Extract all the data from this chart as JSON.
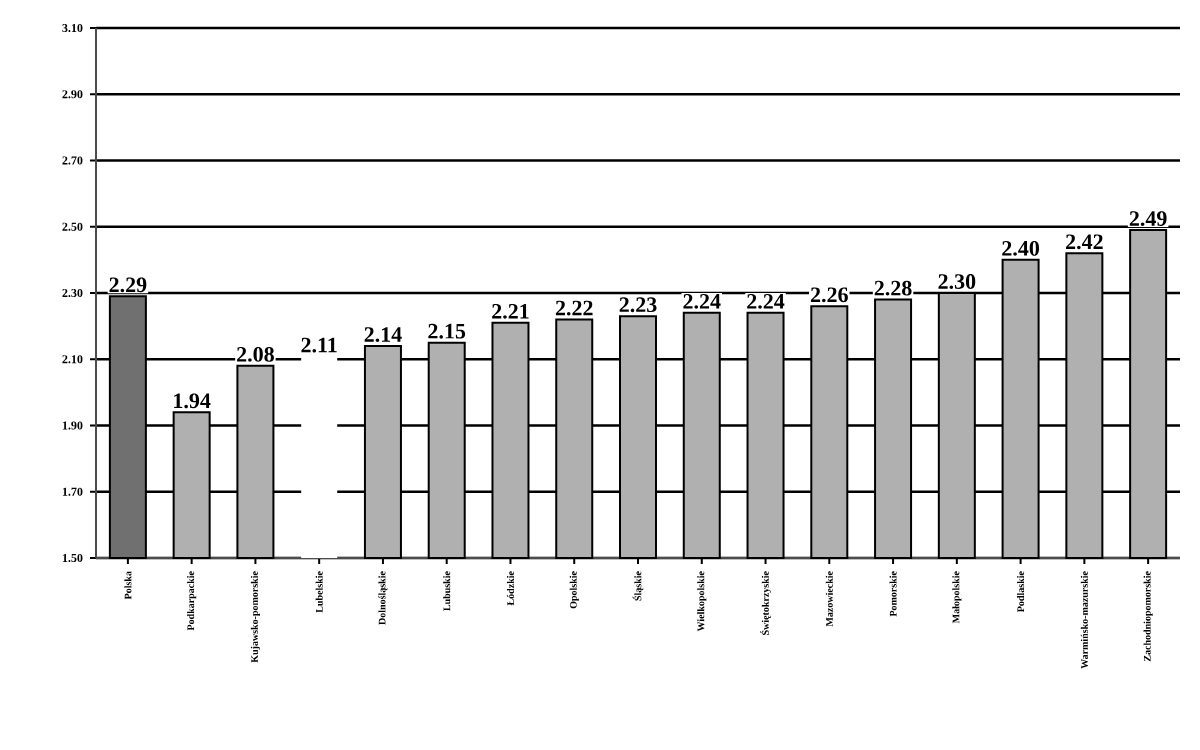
{
  "chart_data": {
    "type": "bar",
    "categories": [
      "Polska",
      "Podkarpackie",
      "Kujawsko-pomorskie",
      "Lubelskie",
      "Dolnośląskie",
      "Lubuskie",
      "Łódzkie",
      "Opolskie",
      "Śląskie",
      "Wielkopolskie",
      "Świętokrzyskie",
      "Mazowieckie",
      "Pomorskie",
      "Małopolskie",
      "Podlaskie",
      "Warmińsko-mazurskie",
      "Zachodniopomorskie"
    ],
    "values": [
      2.29,
      1.94,
      2.08,
      2.11,
      2.14,
      2.15,
      2.21,
      2.22,
      2.23,
      2.24,
      2.24,
      2.26,
      2.28,
      2.3,
      2.4,
      2.42,
      2.49
    ],
    "value_labels": [
      "2.29",
      "1.94",
      "2.08",
      "2.11",
      "2.14",
      "2.15",
      "2.21",
      "2.22",
      "2.23",
      "2.24",
      "2.24",
      "2.26",
      "2.28",
      "2.30",
      "2.40",
      "2.42",
      "2.49"
    ],
    "colors": [
      "#707070",
      "#b0b0b0",
      "#b0b0b0",
      "#ffffff",
      "#b0b0b0",
      "#b0b0b0",
      "#b0b0b0",
      "#b0b0b0",
      "#b0b0b0",
      "#b0b0b0",
      "#b0b0b0",
      "#b0b0b0",
      "#b0b0b0",
      "#b0b0b0",
      "#b0b0b0",
      "#b0b0b0",
      "#b0b0b0"
    ],
    "ylim": [
      1.5,
      3.1
    ],
    "yticks": [
      {
        "value": 1.5,
        "label": "1.50"
      },
      {
        "value": 1.7,
        "label": "1.70"
      },
      {
        "value": 1.9,
        "label": "1.90"
      },
      {
        "value": 2.1,
        "label": "2.10"
      },
      {
        "value": 2.3,
        "label": "2.30"
      },
      {
        "value": 2.5,
        "label": "2.50"
      },
      {
        "value": 2.7,
        "label": "2.70"
      },
      {
        "value": 2.9,
        "label": "2.90"
      },
      {
        "value": 3.1,
        "label": "3.10"
      }
    ],
    "grid": "y"
  }
}
